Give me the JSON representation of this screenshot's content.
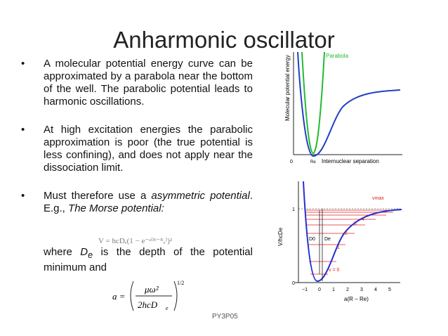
{
  "slide": {
    "title": "Anharmonic oscillator",
    "bullets": [
      {
        "marker": "•",
        "text": "A molecular potential energy curve can be approximated by a parabola near the bottom of the well. The parabolic potential leads to harmonic oscillations."
      },
      {
        "marker": "•",
        "text": "At high excitation energies the parabolic approximation is poor (the true potential is less confining), and does not apply near the dissociation limit."
      },
      {
        "marker": "•",
        "text_before": "Must therefore use a ",
        "text_italic": "asymmetric potential",
        "text_mid": ". E.g., ",
        "text_italic2": "The Morse potential:"
      },
      {
        "marker": "",
        "text_where": "where ",
        "symbol": "D",
        "symbol_sub": "e",
        "text_after": " is the depth of the potential minimum and"
      }
    ],
    "morse_formula": "V = hcDₑ(1 − e⁻ᵃ⁽ᴿ⁻ᴿₑ⁾)²",
    "a_formula": {
      "lhs": "a =",
      "numerator": "μω²",
      "denominator": "2hcD",
      "denominator_sub": "e",
      "exponent": "1/2"
    },
    "footer": "PY3P05"
  },
  "figure_top": {
    "ylabel": "Molecular potential energy",
    "xlabel": "Internuclear separation",
    "x_origin_label": "0",
    "re_label": "Re",
    "parabola_label": "Parabola",
    "colors": {
      "parabola": "#22bb33",
      "morse": "#2040c0"
    }
  },
  "figure_bottom": {
    "ylabel": "V/hcDe",
    "xlabel": "a(R − Re)",
    "x_ticks": [
      "−1",
      "0",
      "1",
      "2",
      "3",
      "4",
      "5"
    ],
    "y_ticks": [
      "0",
      "1"
    ],
    "levels": [
      "v = 0",
      "1",
      "2",
      "3",
      "4"
    ],
    "vmax_label": "vmax",
    "D0_label": "D0",
    "De_label": "De",
    "colors": {
      "curve": "#2030d0",
      "levels": "#e02020"
    }
  }
}
